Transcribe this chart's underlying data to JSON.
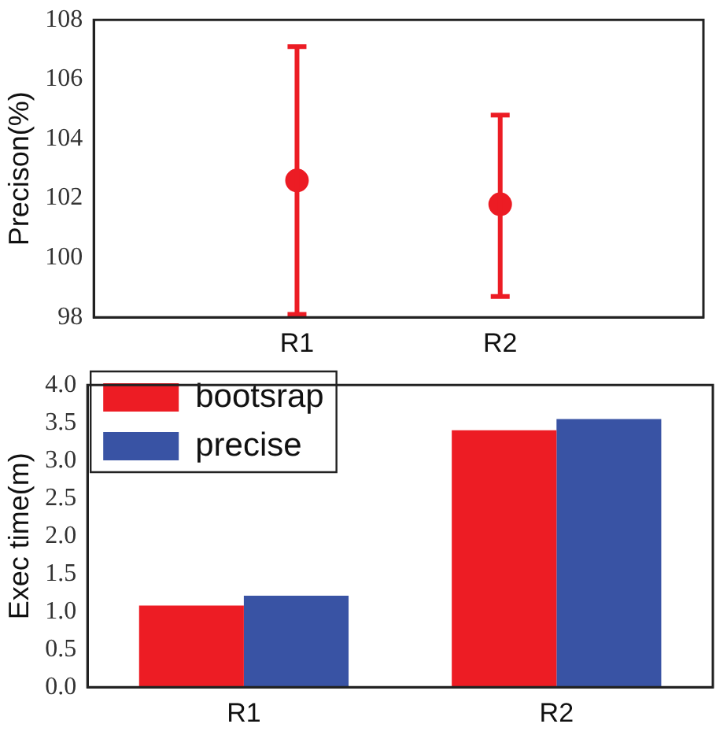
{
  "chart_data": [
    {
      "type": "scatter",
      "ylabel": "Precison(%)",
      "categories": [
        "R1",
        "R2"
      ],
      "values": [
        102.6,
        101.8
      ],
      "errors": [
        [
          98.1,
          107.1
        ],
        [
          98.7,
          104.8
        ]
      ],
      "color": "#ec1c24",
      "marker": "circle",
      "ylim": [
        98,
        108
      ],
      "yticks": [
        98,
        100,
        102,
        104,
        106,
        108
      ],
      "grid": false,
      "legend": false
    },
    {
      "type": "bar",
      "ylabel": "Exec time(m)",
      "categories": [
        "R1",
        "R2"
      ],
      "series": [
        {
          "name": "bootsrap",
          "color": "#ed1c24",
          "values": [
            1.08,
            3.4
          ]
        },
        {
          "name": "precise",
          "color": "#3953a4",
          "values": [
            1.21,
            3.55
          ]
        }
      ],
      "ylim": [
        0,
        4
      ],
      "yticks": [
        {
          "value": 0,
          "label": "0.0"
        },
        0.5,
        {
          "value": 1,
          "label": "1.0"
        },
        1.5,
        {
          "value": 2,
          "label": "2.0"
        },
        2.5,
        {
          "value": 3,
          "label": "3.0"
        },
        3.5,
        {
          "value": 4,
          "label": "4.0"
        }
      ],
      "grid": false,
      "legend": "top left"
    }
  ]
}
